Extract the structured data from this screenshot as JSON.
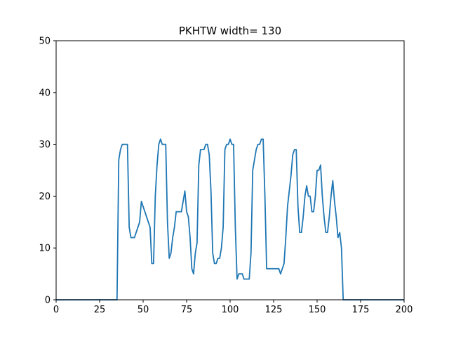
{
  "chart_data": {
    "type": "line",
    "title": "PKHTW width= 130",
    "xlabel": "",
    "ylabel": "",
    "xlim": [
      0,
      200
    ],
    "ylim": [
      0,
      50
    ],
    "grid": false,
    "x_ticks": [
      0,
      25,
      50,
      75,
      100,
      125,
      150,
      175,
      200
    ],
    "x_tick_labels": [
      "0",
      "25",
      "50",
      "75",
      "100",
      "125",
      "150",
      "175",
      "200"
    ],
    "y_ticks": [
      0,
      10,
      20,
      30,
      40,
      50
    ],
    "y_tick_labels": [
      "0",
      "10",
      "20",
      "30",
      "40",
      "50"
    ],
    "series": [
      {
        "color": "#1f77b4",
        "points": [
          [
            0,
            0
          ],
          [
            35,
            0
          ],
          [
            35,
            0
          ],
          [
            36,
            27
          ],
          [
            37,
            29
          ],
          [
            38,
            30
          ],
          [
            39,
            30
          ],
          [
            40,
            30
          ],
          [
            41,
            30
          ],
          [
            42,
            14
          ],
          [
            43,
            12
          ],
          [
            44,
            12
          ],
          [
            45,
            12
          ],
          [
            48,
            15
          ],
          [
            49,
            19
          ],
          [
            50,
            18
          ],
          [
            51,
            17
          ],
          [
            52,
            16
          ],
          [
            53,
            15
          ],
          [
            54,
            14
          ],
          [
            55,
            7
          ],
          [
            56,
            7
          ],
          [
            57,
            20
          ],
          [
            58,
            26
          ],
          [
            59,
            30
          ],
          [
            60,
            31
          ],
          [
            61,
            30
          ],
          [
            62,
            30
          ],
          [
            63,
            30
          ],
          [
            64,
            15
          ],
          [
            65,
            8
          ],
          [
            66,
            9
          ],
          [
            67,
            12
          ],
          [
            68,
            14
          ],
          [
            69,
            17
          ],
          [
            70,
            17
          ],
          [
            71,
            17
          ],
          [
            72,
            17
          ],
          [
            73,
            19
          ],
          [
            74,
            21
          ],
          [
            75,
            17
          ],
          [
            76,
            16
          ],
          [
            77,
            12
          ],
          [
            78,
            6
          ],
          [
            79,
            5
          ],
          [
            80,
            9
          ],
          [
            81,
            11
          ],
          [
            82,
            26
          ],
          [
            83,
            29
          ],
          [
            84,
            29
          ],
          [
            85,
            29
          ],
          [
            86,
            30
          ],
          [
            87,
            30
          ],
          [
            88,
            28
          ],
          [
            89,
            21
          ],
          [
            90,
            9
          ],
          [
            91,
            7
          ],
          [
            92,
            7
          ],
          [
            93,
            8
          ],
          [
            94,
            8
          ],
          [
            95,
            10
          ],
          [
            96,
            14
          ],
          [
            97,
            29
          ],
          [
            98,
            30
          ],
          [
            99,
            30
          ],
          [
            100,
            31
          ],
          [
            101,
            30
          ],
          [
            102,
            30
          ],
          [
            103,
            14
          ],
          [
            104,
            4
          ],
          [
            105,
            5
          ],
          [
            106,
            5
          ],
          [
            107,
            5
          ],
          [
            108,
            4
          ],
          [
            109,
            4
          ],
          [
            110,
            4
          ],
          [
            111,
            4
          ],
          [
            112,
            9
          ],
          [
            113,
            25
          ],
          [
            114,
            27
          ],
          [
            115,
            29
          ],
          [
            116,
            30
          ],
          [
            117,
            30
          ],
          [
            118,
            31
          ],
          [
            119,
            31
          ],
          [
            120,
            20
          ],
          [
            121,
            6
          ],
          [
            122,
            6
          ],
          [
            125,
            6
          ],
          [
            128,
            6
          ],
          [
            129,
            5
          ],
          [
            130,
            6
          ],
          [
            131,
            7
          ],
          [
            132,
            12
          ],
          [
            133,
            18
          ],
          [
            134,
            21
          ],
          [
            135,
            24
          ],
          [
            136,
            28
          ],
          [
            137,
            29
          ],
          [
            138,
            29
          ],
          [
            139,
            18
          ],
          [
            140,
            13
          ],
          [
            141,
            13
          ],
          [
            142,
            16
          ],
          [
            143,
            20
          ],
          [
            144,
            22
          ],
          [
            145,
            20
          ],
          [
            146,
            20
          ],
          [
            147,
            17
          ],
          [
            148,
            17
          ],
          [
            149,
            20
          ],
          [
            150,
            25
          ],
          [
            151,
            25
          ],
          [
            152,
            26
          ],
          [
            153,
            20
          ],
          [
            154,
            16
          ],
          [
            155,
            13
          ],
          [
            156,
            13
          ],
          [
            157,
            16
          ],
          [
            158,
            20
          ],
          [
            159,
            23
          ],
          [
            160,
            19
          ],
          [
            161,
            16
          ],
          [
            162,
            12
          ],
          [
            163,
            13
          ],
          [
            164,
            10
          ],
          [
            165,
            0
          ],
          [
            165,
            0
          ],
          [
            200,
            0
          ]
        ]
      }
    ]
  }
}
